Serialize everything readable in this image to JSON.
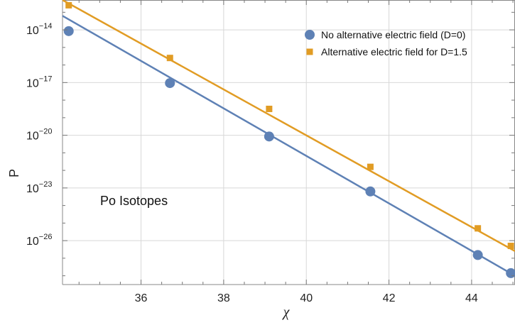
{
  "chart_data": {
    "type": "scatter",
    "xlabel": "χ",
    "ylabel": "P",
    "xlim": [
      34.1,
      45.05
    ],
    "ylog": true,
    "ylim_exponent": [
      -28.5,
      -12.3
    ],
    "grid": true,
    "legend_position": "top-right",
    "x_ticks": [
      "36",
      "38",
      "40",
      "42",
      "44"
    ],
    "y_ticks": [
      {
        "base": "10",
        "exp": "−14"
      },
      {
        "base": "10",
        "exp": "−17"
      },
      {
        "base": "10",
        "exp": "−20"
      },
      {
        "base": "10",
        "exp": "−23"
      },
      {
        "base": "10",
        "exp": "−26"
      }
    ],
    "annotations": [
      "Po Isotopes"
    ],
    "series": [
      {
        "name": "No alternative electric field (D=0)",
        "marker": "circle",
        "color": "#5e81b5",
        "points_x": [
          34.25,
          36.7,
          39.1,
          41.55,
          44.15,
          44.95
        ],
        "points_log10_y": [
          -14.07,
          -17.03,
          -20.07,
          -23.2,
          -26.82,
          -27.85
        ],
        "fit_log10_y": [
          -13.2,
          -28.0
        ]
      },
      {
        "name": "Alternative electric field for D=1.5",
        "marker": "square",
        "color": "#e19c24",
        "points_x": [
          34.25,
          36.7,
          39.1,
          41.55,
          44.15,
          44.95
        ],
        "points_log10_y": [
          -12.6,
          -15.6,
          -18.5,
          -21.8,
          -25.3,
          -26.3
        ],
        "fit_log10_y": [
          -12.3,
          -26.6
        ]
      }
    ]
  }
}
